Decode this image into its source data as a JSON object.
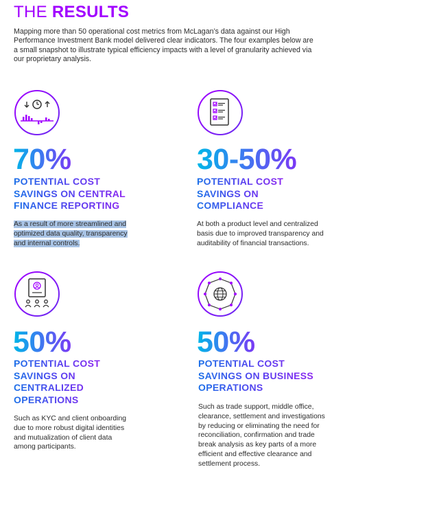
{
  "title": {
    "prefix": "THE ",
    "bold": "RESULTS"
  },
  "intro": "Mapping more than 50 operational cost metrics from McLagan’s data against our High Performance Investment Bank model delivered clear indicators. The four examples below are a small snapshot to illustrate typical efficiency impacts with a level of granularity achieved via our proprietary analysis.",
  "colors": {
    "accent_purple": "#a100ff",
    "gradient_start": "#00b7e8",
    "gradient_end": "#7b39f5"
  },
  "results": [
    {
      "icon": "finance-reporting-icon",
      "value": "70%",
      "heading": "POTENTIAL COST\nSAVINGS ON CENTRAL\nFINANCE REPORTING",
      "description": "As a result of more streamlined and\noptimized data quality, transparency\nand internal controls."
    },
    {
      "icon": "compliance-checklist-icon",
      "value": "30-50%",
      "heading": "POTENTIAL COST\nSAVINGS ON\nCOMPLIANCE",
      "description": "At both a product level and centralized\nbasis due to improved transparency and\nauditability of financial transactions."
    },
    {
      "icon": "centralized-operations-icon",
      "value": "50%",
      "heading": "POTENTIAL COST\nSAVINGS ON\nCENTRALIZED\nOPERATIONS",
      "description": "Such as KYC and client onboarding\ndue to more robust digital identities\nand mutualization of client data\namong participants."
    },
    {
      "icon": "globe-network-icon",
      "value": "50%",
      "heading": "POTENTIAL COST\nSAVINGS ON BUSINESS\nOPERATIONS",
      "description": "Such as trade support, middle office,\nclearance, settlement and investigations\nby reducing or eliminating the need for\nreconciliation, confirmation and trade\nbreak analysis as key parts of a more\nefficient and effective clearance and\nsettlement process."
    }
  ]
}
